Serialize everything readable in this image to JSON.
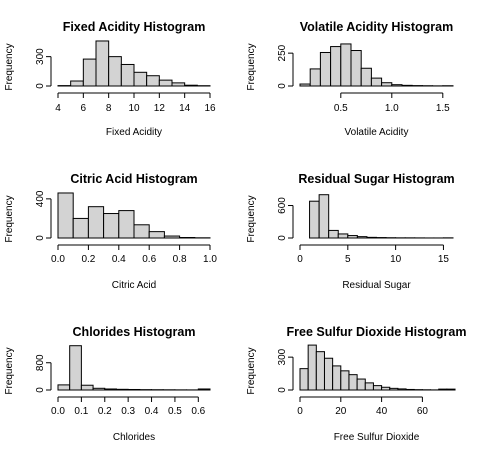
{
  "chart_data": [
    {
      "type": "bar",
      "title": "Fixed Acidity Histogram",
      "xlabel": "Fixed Acidity",
      "ylabel": "Frequency",
      "xlim": [
        4,
        16
      ],
      "ylim": [
        0,
        470
      ],
      "xticks": [
        4,
        6,
        8,
        10,
        12,
        14,
        16
      ],
      "xtick_labels": [
        "4",
        "6",
        "8",
        "10",
        "12",
        "14",
        "16"
      ],
      "yticks": [
        0,
        300
      ],
      "ytick_labels": [
        "0",
        "300"
      ],
      "bins": [
        [
          4,
          5
        ],
        [
          5,
          6
        ],
        [
          6,
          7
        ],
        [
          7,
          8
        ],
        [
          8,
          9
        ],
        [
          9,
          10
        ],
        [
          10,
          11
        ],
        [
          11,
          12
        ],
        [
          12,
          13
        ],
        [
          13,
          14
        ],
        [
          14,
          15
        ],
        [
          15,
          16
        ]
      ],
      "values": [
        4,
        51,
        275,
        460,
        300,
        220,
        140,
        105,
        60,
        32,
        8,
        3
      ]
    },
    {
      "type": "bar",
      "title": "Volatile Acidity Histogram",
      "xlabel": "Volatile Acidity",
      "ylabel": "Frequency",
      "xlim": [
        0.1,
        1.6
      ],
      "ylim": [
        0,
        350
      ],
      "xticks": [
        0.5,
        1.0,
        1.5
      ],
      "xtick_labels": [
        "0.5",
        "1.0",
        "1.5"
      ],
      "yticks": [
        0,
        250
      ],
      "ytick_labels": [
        "0",
        "250"
      ],
      "bins": [
        [
          0.1,
          0.2
        ],
        [
          0.2,
          0.3
        ],
        [
          0.3,
          0.4
        ],
        [
          0.4,
          0.5
        ],
        [
          0.5,
          0.6
        ],
        [
          0.6,
          0.7
        ],
        [
          0.7,
          0.8
        ],
        [
          0.8,
          0.9
        ],
        [
          0.9,
          1.0
        ],
        [
          1.0,
          1.1
        ],
        [
          1.1,
          1.2
        ],
        [
          1.2,
          1.3
        ],
        [
          1.3,
          1.4
        ],
        [
          1.4,
          1.5
        ],
        [
          1.5,
          1.6
        ]
      ],
      "values": [
        15,
        130,
        255,
        300,
        320,
        270,
        135,
        60,
        25,
        10,
        5,
        3,
        2,
        1,
        2
      ]
    },
    {
      "type": "bar",
      "title": "Citric Acid Histogram",
      "xlabel": "Citric Acid",
      "ylabel": "Frequency",
      "xlim": [
        0,
        1
      ],
      "ylim": [
        0,
        470
      ],
      "xticks": [
        0,
        0.2,
        0.4,
        0.6,
        0.8,
        1.0
      ],
      "xtick_labels": [
        "0.0",
        "0.2",
        "0.4",
        "0.6",
        "0.8",
        "1.0"
      ],
      "yticks": [
        0,
        400
      ],
      "ytick_labels": [
        "0",
        "400"
      ],
      "bins": [
        [
          0,
          0.1
        ],
        [
          0.1,
          0.2
        ],
        [
          0.2,
          0.3
        ],
        [
          0.3,
          0.4
        ],
        [
          0.4,
          0.5
        ],
        [
          0.5,
          0.6
        ],
        [
          0.6,
          0.7
        ],
        [
          0.7,
          0.8
        ],
        [
          0.8,
          0.9
        ],
        [
          0.9,
          1.0
        ]
      ],
      "values": [
        460,
        200,
        320,
        250,
        280,
        135,
        65,
        20,
        5,
        2
      ]
    },
    {
      "type": "bar",
      "title": "Residual Sugar Histogram",
      "xlabel": "Residual Sugar",
      "ylabel": "Frequency",
      "xlim": [
        0,
        16
      ],
      "ylim": [
        0,
        850
      ],
      "xticks": [
        0,
        5,
        10,
        15
      ],
      "xtick_labels": [
        "0",
        "5",
        "10",
        "15"
      ],
      "yticks": [
        0,
        600
      ],
      "ytick_labels": [
        "0",
        "600"
      ],
      "bins": [
        [
          0,
          1
        ],
        [
          1,
          2
        ],
        [
          2,
          3
        ],
        [
          3,
          4
        ],
        [
          4,
          5
        ],
        [
          5,
          6
        ],
        [
          6,
          7
        ],
        [
          7,
          8
        ],
        [
          8,
          9
        ],
        [
          9,
          10
        ],
        [
          10,
          11
        ],
        [
          11,
          12
        ],
        [
          12,
          13
        ],
        [
          13,
          14
        ],
        [
          14,
          15
        ],
        [
          15,
          16
        ]
      ],
      "values": [
        0,
        680,
        800,
        140,
        75,
        45,
        25,
        12,
        8,
        5,
        3,
        3,
        2,
        1,
        1,
        3
      ]
    },
    {
      "type": "bar",
      "title": "Chlorides Histogram",
      "xlabel": "Chlorides",
      "ylabel": "Frequency",
      "xlim": [
        0,
        0.65
      ],
      "ylim": [
        0,
        1350
      ],
      "xticks": [
        0,
        0.1,
        0.2,
        0.3,
        0.4,
        0.5,
        0.6
      ],
      "xtick_labels": [
        "0.0",
        "0.1",
        "0.2",
        "0.3",
        "0.4",
        "0.5",
        "0.6"
      ],
      "yticks": [
        0,
        800
      ],
      "ytick_labels": [
        "0",
        "800"
      ],
      "bins": [
        [
          0,
          0.05
        ],
        [
          0.05,
          0.1
        ],
        [
          0.1,
          0.15
        ],
        [
          0.15,
          0.2
        ],
        [
          0.2,
          0.25
        ],
        [
          0.25,
          0.3
        ],
        [
          0.3,
          0.35
        ],
        [
          0.35,
          0.4
        ],
        [
          0.4,
          0.45
        ],
        [
          0.45,
          0.5
        ],
        [
          0.5,
          0.55
        ],
        [
          0.55,
          0.6
        ],
        [
          0.6,
          0.65
        ]
      ],
      "values": [
        150,
        1300,
        140,
        50,
        30,
        20,
        15,
        10,
        8,
        6,
        4,
        3,
        30
      ]
    },
    {
      "type": "bar",
      "title": "Free Sulfur Dioxide Histogram",
      "xlabel": "Free Sulfur Dioxide",
      "ylabel": "Frequency",
      "xlim": [
        0,
        75
      ],
      "ylim": [
        0,
        420
      ],
      "xticks": [
        0,
        20,
        40,
        60
      ],
      "xtick_labels": [
        "0",
        "20",
        "40",
        "60"
      ],
      "yticks": [
        0,
        300
      ],
      "ytick_labels": [
        "0",
        "300"
      ],
      "bins": [
        [
          0,
          4
        ],
        [
          4,
          8
        ],
        [
          8,
          12
        ],
        [
          12,
          16
        ],
        [
          16,
          20
        ],
        [
          20,
          24
        ],
        [
          24,
          28
        ],
        [
          28,
          32
        ],
        [
          32,
          36
        ],
        [
          36,
          40
        ],
        [
          40,
          44
        ],
        [
          44,
          48
        ],
        [
          48,
          52
        ],
        [
          52,
          56
        ],
        [
          56,
          60
        ],
        [
          60,
          64
        ],
        [
          64,
          68
        ],
        [
          68,
          72
        ],
        [
          72,
          76
        ]
      ],
      "values": [
        195,
        410,
        350,
        290,
        220,
        175,
        140,
        100,
        65,
        40,
        25,
        15,
        10,
        5,
        3,
        2,
        1,
        8,
        8
      ]
    }
  ]
}
